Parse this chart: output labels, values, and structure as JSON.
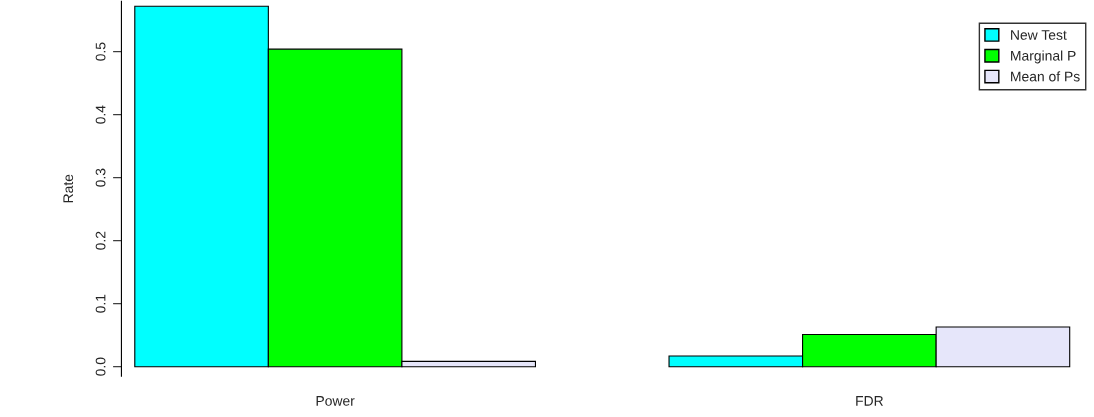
{
  "chart_data": {
    "type": "bar",
    "ylabel": "Rate",
    "categories": [
      "Power",
      "FDR"
    ],
    "series": [
      {
        "name": "New Test",
        "color": "#00ffff",
        "values": [
          0.572,
          0.017
        ]
      },
      {
        "name": "Marginal P",
        "color": "#00ff00",
        "values": [
          0.504,
          0.051
        ]
      },
      {
        "name": "Mean of Ps",
        "color": "#e6e6fa",
        "values": [
          0.0085,
          0.063
        ]
      }
    ],
    "ylim": [
      -0.015,
      0.58
    ],
    "yticks": [
      {
        "value": 0,
        "label": "0.0"
      },
      0.1,
      0.2,
      0.3,
      0.4,
      0.5
    ],
    "grid": false,
    "legend": "top right"
  }
}
